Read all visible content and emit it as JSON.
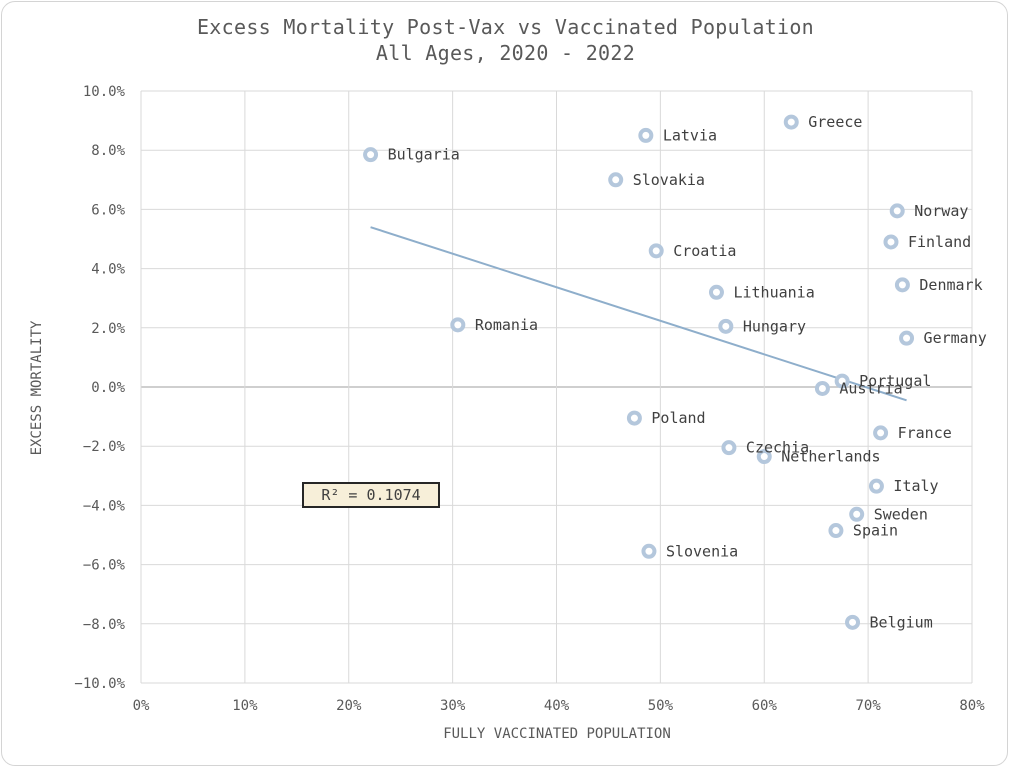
{
  "chart_data": {
    "type": "scatter",
    "title": "Excess Mortality Post-Vax vs Vaccinated Population",
    "subtitle": "All Ages, 2020 - 2022",
    "xlabel": "FULLY VACCINATED POPULATION",
    "ylabel": "EXCESS MORTALITY",
    "xlim": [
      0,
      80
    ],
    "ylim": [
      -10,
      10
    ],
    "x_ticks": [
      0,
      10,
      20,
      30,
      40,
      50,
      60,
      70,
      80
    ],
    "y_ticks": [
      10,
      8,
      6,
      4,
      2,
      0,
      -2,
      -4,
      -6,
      -8,
      -10
    ],
    "x_tick_labels": [
      "0%",
      "10%",
      "20%",
      "30%",
      "40%",
      "50%",
      "60%",
      "70%",
      "80%"
    ],
    "y_tick_labels": [
      "10.0%",
      "8.0%",
      "6.0%",
      "4.0%",
      "2.0%",
      "0.0%",
      "−2.0%",
      "−4.0%",
      "−6.0%",
      "−8.0%",
      "−10.0%"
    ],
    "grid": true,
    "marker_color": "#b4c7dc",
    "trendline_color": "#8eaecb",
    "points": [
      {
        "label": "Bulgaria",
        "x": 22.1,
        "y": 7.85
      },
      {
        "label": "Romania",
        "x": 30.5,
        "y": 2.1
      },
      {
        "label": "Slovakia",
        "x": 45.7,
        "y": 7.0
      },
      {
        "label": "Latvia",
        "x": 48.6,
        "y": 8.5
      },
      {
        "label": "Croatia",
        "x": 49.6,
        "y": 4.6
      },
      {
        "label": "Poland",
        "x": 47.5,
        "y": -1.05
      },
      {
        "label": "Slovenia",
        "x": 48.9,
        "y": -5.55
      },
      {
        "label": "Lithuania",
        "x": 55.4,
        "y": 3.2
      },
      {
        "label": "Hungary",
        "x": 56.3,
        "y": 2.05
      },
      {
        "label": "Czechia",
        "x": 56.6,
        "y": -2.05
      },
      {
        "label": "Netherlands",
        "x": 60.0,
        "y": -2.35
      },
      {
        "label": "Greece",
        "x": 62.6,
        "y": 8.95
      },
      {
        "label": "Austria",
        "x": 65.6,
        "y": -0.05
      },
      {
        "label": "Portugal",
        "x": 67.5,
        "y": 0.2
      },
      {
        "label": "Spain",
        "x": 66.9,
        "y": -4.85
      },
      {
        "label": "Belgium",
        "x": 68.5,
        "y": -7.95
      },
      {
        "label": "Sweden",
        "x": 68.9,
        "y": -4.3
      },
      {
        "label": "Italy",
        "x": 70.8,
        "y": -3.35
      },
      {
        "label": "France",
        "x": 71.2,
        "y": -1.55
      },
      {
        "label": "Finland",
        "x": 72.2,
        "y": 4.9
      },
      {
        "label": "Norway",
        "x": 72.8,
        "y": 5.95
      },
      {
        "label": "Denmark",
        "x": 73.3,
        "y": 3.45
      },
      {
        "label": "Germany",
        "x": 73.7,
        "y": 1.65
      }
    ],
    "trendline": {
      "x": [
        22.1,
        73.7
      ],
      "y": [
        5.4,
        -0.45
      ]
    },
    "r_squared": "R² = 0.1074"
  }
}
